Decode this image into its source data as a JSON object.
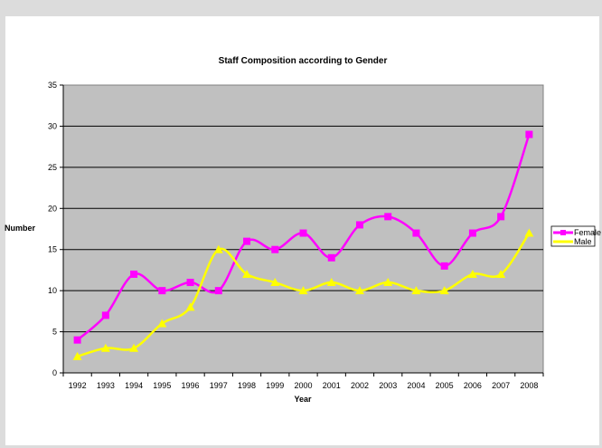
{
  "chart_data": {
    "type": "line",
    "title": "Staff Composition according to Gender",
    "xlabel": "Year",
    "ylabel": "Number",
    "ylim": [
      0,
      35
    ],
    "y_ticks": [
      0,
      5,
      10,
      15,
      20,
      25,
      30,
      35
    ],
    "grid": true,
    "legend_position": "right",
    "categories": [
      "1992",
      "1993",
      "1994",
      "1995",
      "1996",
      "1997",
      "1998",
      "1999",
      "2000",
      "2001",
      "2002",
      "2003",
      "2004",
      "2005",
      "2006",
      "2007",
      "2008"
    ],
    "series": [
      {
        "name": "Female",
        "color": "#ff00ff",
        "marker": "square",
        "values": [
          4,
          7,
          12,
          10,
          11,
          10,
          16,
          15,
          17,
          14,
          18,
          19,
          17,
          13,
          17,
          19,
          29
        ]
      },
      {
        "name": "Male",
        "color": "#ffff00",
        "marker": "triangle",
        "values": [
          2,
          3,
          3,
          6,
          8,
          15,
          12,
          11,
          10,
          11,
          10,
          11,
          10,
          10,
          12,
          12,
          17
        ]
      }
    ],
    "plot_background": "#c0c0c0"
  }
}
